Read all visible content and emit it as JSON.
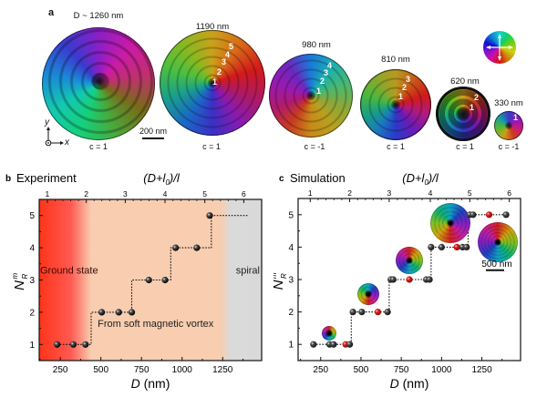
{
  "panel_a": {
    "letter": "a",
    "disks": [
      {
        "diameter_label": "D ~ 1260 nm",
        "chirality_label": "c = 1",
        "ring_numbers": []
      },
      {
        "diameter_label": "1190 nm",
        "chirality_label": "c = 1",
        "ring_numbers": [
          "1",
          "2",
          "3",
          "4",
          "5"
        ]
      },
      {
        "diameter_label": "980 nm",
        "chirality_label": "c = -1",
        "ring_numbers": [
          "1",
          "2",
          "3",
          "4"
        ]
      },
      {
        "diameter_label": "810 nm",
        "chirality_label": "c = 1",
        "ring_numbers": [
          "1",
          "2",
          "3"
        ]
      },
      {
        "diameter_label": "620 nm",
        "chirality_label": "c = 1",
        "ring_numbers": [
          "1",
          "2"
        ]
      },
      {
        "diameter_label": "330 nm",
        "chirality_label": "c = -1",
        "ring_numbers": [
          "1"
        ]
      }
    ],
    "scale_bar": "200 nm",
    "axis_y": "y",
    "axis_x": "x",
    "color_wheel_icon": "in-plane-magnetization-color-wheel"
  },
  "chart_data": [
    {
      "type": "scatter",
      "panel": "b",
      "title": "Experiment",
      "xlabel": "D (nm)",
      "ylabel": "N_R^m",
      "top_xlabel": "(D+l0)/l",
      "xlim": [
        120,
        1490
      ],
      "ylim": [
        0.5,
        5.5
      ],
      "xticks": [
        250,
        500,
        750,
        1000,
        1250
      ],
      "yticks": [
        1,
        2,
        3,
        4,
        5
      ],
      "top_xticks": [
        "1",
        "2",
        "3",
        "4",
        "5",
        "6"
      ],
      "top_xtick_positions_D": [
        170,
        410,
        650,
        895,
        1140,
        1380
      ],
      "points": [
        {
          "D": 230,
          "N": 1
        },
        {
          "D": 330,
          "N": 1
        },
        {
          "D": 405,
          "N": 1
        },
        {
          "D": 505,
          "N": 2
        },
        {
          "D": 610,
          "N": 2
        },
        {
          "D": 690,
          "N": 2
        },
        {
          "D": 795,
          "N": 3
        },
        {
          "D": 895,
          "N": 3
        },
        {
          "D": 960,
          "N": 4
        },
        {
          "D": 1090,
          "N": 4
        },
        {
          "D": 1170,
          "N": 5
        }
      ],
      "step_line": [
        [
          230,
          1
        ],
        [
          440,
          1
        ],
        [
          440,
          2
        ],
        [
          690,
          2
        ],
        [
          690,
          3
        ],
        [
          930,
          3
        ],
        [
          930,
          4
        ],
        [
          1180,
          4
        ],
        [
          1180,
          5
        ],
        [
          1410,
          5
        ]
      ],
      "regions": [
        {
          "label": "Ground state",
          "from": 120,
          "to": 440,
          "color": "#ff3d1f"
        },
        {
          "label": "From soft magnetic vortex",
          "from": 440,
          "to": 1280,
          "color": "#f8cdb0"
        },
        {
          "label": "spiral",
          "from": 1290,
          "to": 1490,
          "color": "#d9d9d9"
        }
      ]
    },
    {
      "type": "scatter",
      "panel": "c",
      "title": "Simulation",
      "xlabel": "D (nm)",
      "ylabel": "N_R^m",
      "top_xlabel": "(D+l0)/l",
      "xlim": [
        110,
        1490
      ],
      "ylim": [
        0.5,
        5.5
      ],
      "xticks": [
        250,
        500,
        750,
        1000,
        1250
      ],
      "yticks": [
        1,
        2,
        3,
        4,
        5
      ],
      "top_xticks": [
        "1",
        "2",
        "3",
        "4",
        "5",
        "6"
      ],
      "top_xtick_positions_D": [
        185,
        430,
        675,
        930,
        1175,
        1420
      ],
      "points": [
        {
          "D": 205,
          "N": 1,
          "highlight": false
        },
        {
          "D": 305,
          "N": 1,
          "highlight": false
        },
        {
          "D": 330,
          "N": 1,
          "highlight": false
        },
        {
          "D": 405,
          "N": 1,
          "highlight": true
        },
        {
          "D": 430,
          "N": 1,
          "highlight": false
        },
        {
          "D": 450,
          "N": 2,
          "highlight": false
        },
        {
          "D": 505,
          "N": 2,
          "highlight": false
        },
        {
          "D": 605,
          "N": 2,
          "highlight": true
        },
        {
          "D": 665,
          "N": 2,
          "highlight": false
        },
        {
          "D": 685,
          "N": 3,
          "highlight": false
        },
        {
          "D": 700,
          "N": 3,
          "highlight": false
        },
        {
          "D": 800,
          "N": 3,
          "highlight": true
        },
        {
          "D": 905,
          "N": 3,
          "highlight": false
        },
        {
          "D": 925,
          "N": 3,
          "highlight": false
        },
        {
          "D": 935,
          "N": 4,
          "highlight": false
        },
        {
          "D": 1000,
          "N": 4,
          "highlight": false
        },
        {
          "D": 1095,
          "N": 4,
          "highlight": true
        },
        {
          "D": 1130,
          "N": 4,
          "highlight": false
        },
        {
          "D": 1155,
          "N": 4,
          "highlight": false
        },
        {
          "D": 1175,
          "N": 5,
          "highlight": false
        },
        {
          "D": 1195,
          "N": 5,
          "highlight": false
        },
        {
          "D": 1295,
          "N": 5,
          "highlight": true
        },
        {
          "D": 1400,
          "N": 5,
          "highlight": false
        }
      ],
      "step_line": [
        [
          205,
          1
        ],
        [
          440,
          1
        ],
        [
          440,
          2
        ],
        [
          675,
          2
        ],
        [
          675,
          3
        ],
        [
          935,
          3
        ],
        [
          935,
          4
        ],
        [
          1165,
          4
        ],
        [
          1165,
          5
        ],
        [
          1400,
          5
        ]
      ],
      "insets": [
        {
          "D": 300,
          "N": 1.35,
          "rings": 1,
          "size": "small"
        },
        {
          "D": 545,
          "N": 2.55,
          "rings": 2,
          "size": "small"
        },
        {
          "D": 800,
          "N": 3.6,
          "rings": 3,
          "size": "medium"
        },
        {
          "D": 1055,
          "N": 4.75,
          "rings": 4,
          "size": "large"
        },
        {
          "D": 1350,
          "N": 4.15,
          "rings": 5,
          "size": "large"
        }
      ],
      "scale_bar": "500 nm",
      "highlight_color": "#e0201b",
      "point_color": "#111111"
    }
  ]
}
